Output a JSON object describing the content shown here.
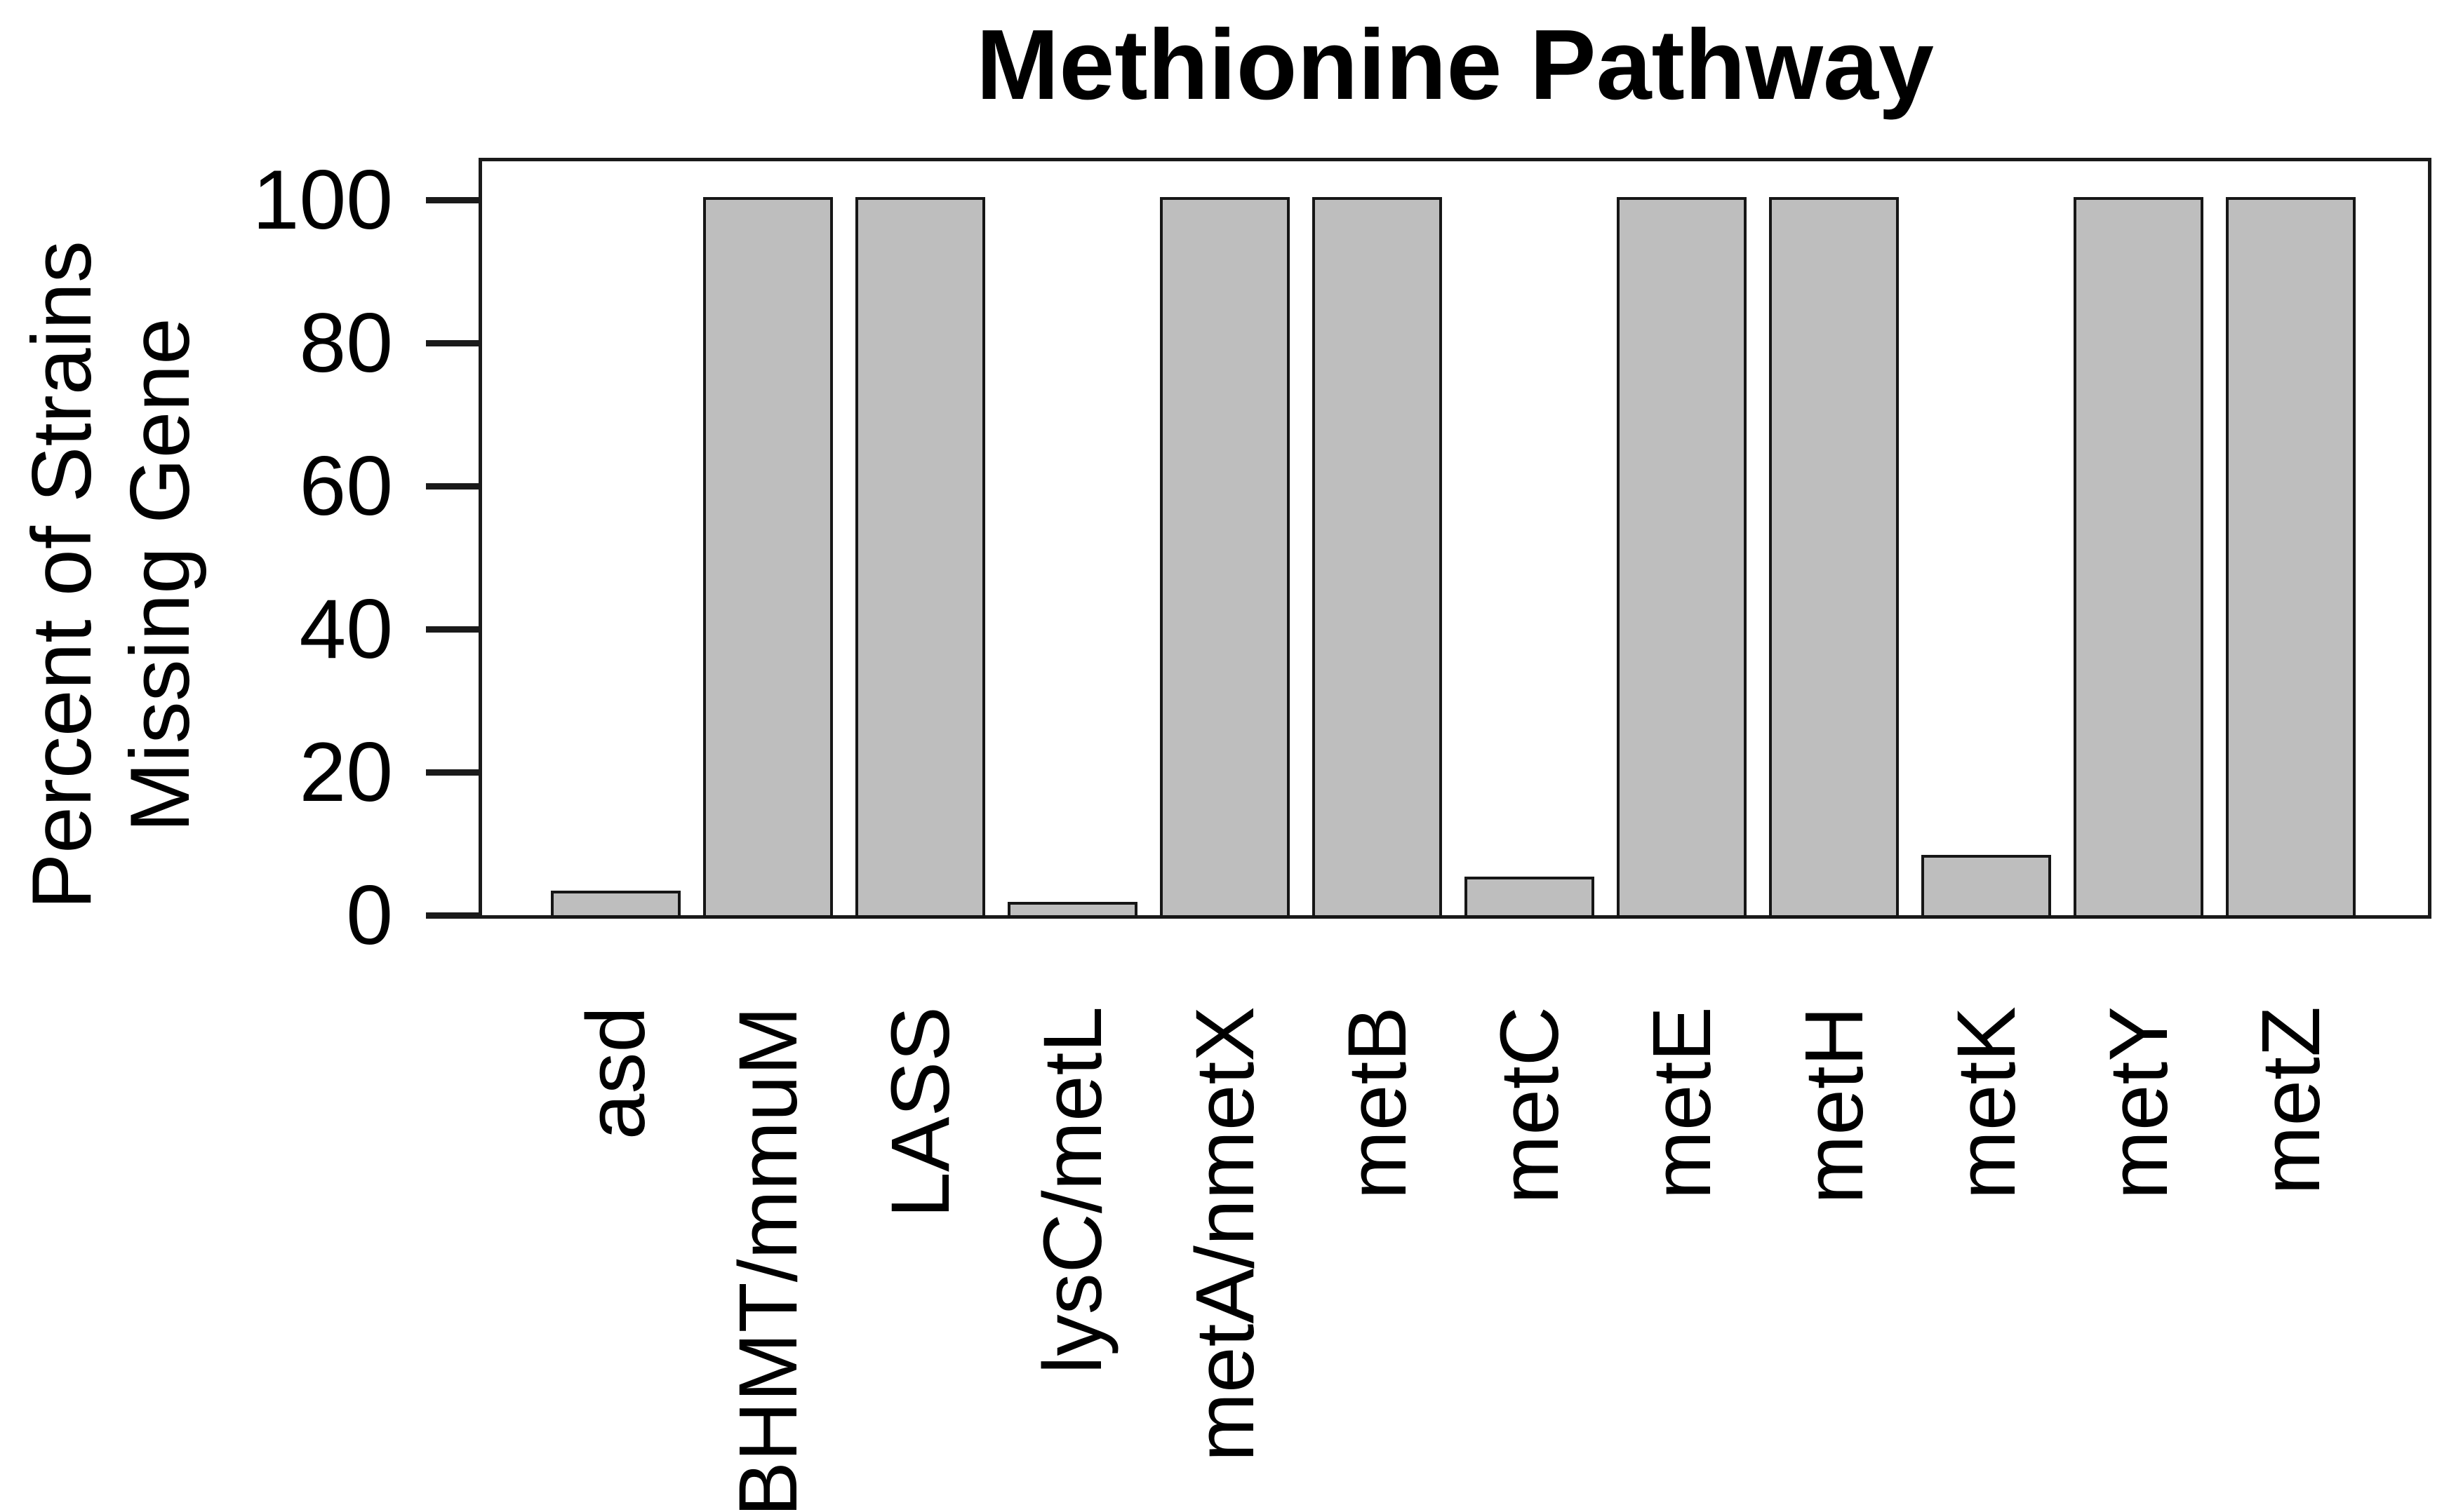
{
  "figure": {
    "background": "#ffffff"
  },
  "chart_data": {
    "type": "bar",
    "title": "Methionine Pathway",
    "ylabel_lines": [
      "Percent of Strains",
      "Missing Gene"
    ],
    "xlabel": "",
    "categories": [
      "asd",
      "BHMT/mmuM",
      "LASS",
      "lysC/metL",
      "metA/nmetX",
      "metB",
      "metC",
      "metE",
      "metH",
      "metK",
      "metY",
      "metZ"
    ],
    "values": [
      3,
      100,
      100,
      1.5,
      100,
      100,
      5,
      100,
      100,
      8,
      100,
      100
    ],
    "yticks": [
      0,
      20,
      40,
      60,
      80,
      100
    ],
    "ylim": [
      0,
      105
    ],
    "grid": false,
    "legend": null,
    "bar_fill": "#bebebe",
    "bar_border": "#161616",
    "axis_color": "#1a1a1a",
    "text_color": "#000000"
  }
}
